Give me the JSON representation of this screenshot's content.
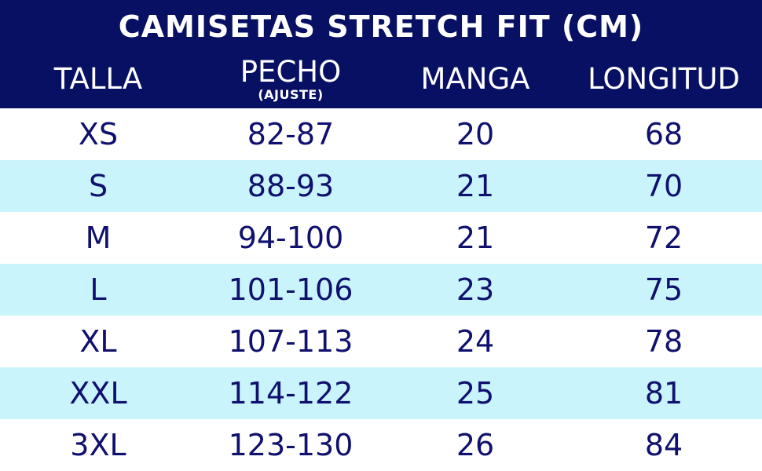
{
  "title": "CAMISETAS STRETCH FIT (CM)",
  "columns": {
    "talla": "TALLA",
    "pecho": "PECHO",
    "pecho_sub": "(AJUSTE)",
    "manga": "MANGA",
    "longitud": "LONGITUD"
  },
  "rows": [
    [
      "XS",
      "82-87",
      "20",
      "68"
    ],
    [
      "S",
      "88-93",
      "21",
      "70"
    ],
    [
      "M",
      "94-100",
      "21",
      "72"
    ],
    [
      "L",
      "101-106",
      "23",
      "75"
    ],
    [
      "XL",
      "107-113",
      "24",
      "78"
    ],
    [
      "XXL",
      "114-122",
      "25",
      "81"
    ],
    [
      "3XL",
      "123-130",
      "26",
      "84"
    ]
  ],
  "colors": {
    "header_navy": "#071062",
    "stripe_cyan": "#c9f4fc",
    "text_navy": "#10106e",
    "header_text": "#ffffff"
  },
  "chart_data": {
    "type": "table",
    "title": "CAMISETAS STRETCH FIT (CM)",
    "units": "cm",
    "columns": [
      "TALLA",
      "PECHO (AJUSTE)",
      "MANGA",
      "LONGITUD"
    ],
    "rows": [
      [
        "XS",
        "82-87",
        "20",
        "68"
      ],
      [
        "S",
        "88-93",
        "21",
        "70"
      ],
      [
        "M",
        "94-100",
        "21",
        "72"
      ],
      [
        "L",
        "101-106",
        "23",
        "75"
      ],
      [
        "XL",
        "107-113",
        "24",
        "78"
      ],
      [
        "XXL",
        "114-122",
        "25",
        "81"
      ],
      [
        "3XL",
        "123-130",
        "26",
        "84"
      ]
    ],
    "layout": {
      "header_background": "#071062",
      "alternating_row_color": "#c9f4fc",
      "striped_rows": [
        "S",
        "L",
        "XXL"
      ]
    }
  }
}
